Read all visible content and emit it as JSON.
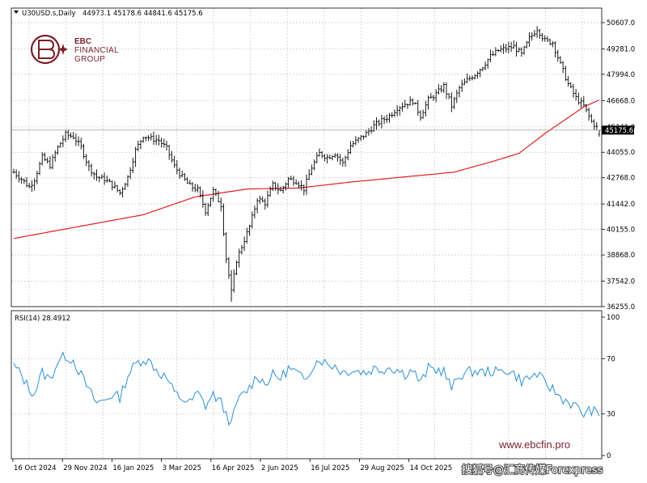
{
  "header": {
    "symbol": "U30USD.s,Daily",
    "ohlc": "44973.1 45178.6 44841.6 45175.6"
  },
  "brand": {
    "line1": "EBC",
    "line2": "FINANCIAL",
    "line3": "GROUP",
    "website": "www.ebcfin.pro",
    "source_caption": "搜狐号@汇商传媒Forexpress"
  },
  "colors": {
    "candle": "#1a1a1a",
    "ma": "#e02020",
    "rsi": "#2a8fd6",
    "grid": "#c8c8c8",
    "brand": "#7a1f2a"
  },
  "chart_data": [
    {
      "type": "candlestick",
      "title": "U30USD.s,Daily",
      "ohlc_last": {
        "open": 44973.1,
        "high": 45178.6,
        "low": 44841.6,
        "close": 45175.6
      },
      "current_price_label": "45175.6",
      "y_ticks": [
        "50607.0",
        "49281.0",
        "47994.0",
        "46668.0",
        "45341.0",
        "44055.0",
        "42768.0",
        "41442.0",
        "40155.0",
        "38868.0",
        "37542.0",
        "36255.0"
      ],
      "ylim": [
        36255,
        50607
      ],
      "x_ticks": [
        "16 Oct 2024",
        "29 Nov 2024",
        "16 Jan 2025",
        "3 Mar 2025",
        "16 Apr 2025",
        "2 Jun 2025",
        "16 Jul 2025",
        "29 Aug 2025",
        "14 Oct 2025"
      ],
      "close_path": [
        [
          0,
          43050
        ],
        [
          3,
          42700
        ],
        [
          6,
          42300
        ],
        [
          8,
          42700
        ],
        [
          11,
          43800
        ],
        [
          14,
          43400
        ],
        [
          17,
          44300
        ],
        [
          20,
          44950
        ],
        [
          23,
          44850
        ],
        [
          26,
          44300
        ],
        [
          29,
          43300
        ],
        [
          32,
          42800
        ],
        [
          35,
          42700
        ],
        [
          38,
          42400
        ],
        [
          41,
          42000
        ],
        [
          44,
          42800
        ],
        [
          47,
          44150
        ],
        [
          50,
          44900
        ],
        [
          53,
          44750
        ],
        [
          56,
          44650
        ],
        [
          59,
          44250
        ],
        [
          62,
          43350
        ],
        [
          65,
          42800
        ],
        [
          68,
          42350
        ],
        [
          71,
          42150
        ],
        [
          74,
          41100
        ],
        [
          77,
          42100
        ],
        [
          80,
          41400
        ],
        [
          82,
          38700
        ],
        [
          84,
          37000
        ],
        [
          86,
          38600
        ],
        [
          88,
          39300
        ],
        [
          91,
          40300
        ],
        [
          94,
          41700
        ],
        [
          97,
          41500
        ],
        [
          100,
          42400
        ],
        [
          103,
          42100
        ],
        [
          106,
          42700
        ],
        [
          109,
          42600
        ],
        [
          112,
          42200
        ],
        [
          115,
          43300
        ],
        [
          118,
          44000
        ],
        [
          121,
          43800
        ],
        [
          124,
          44000
        ],
        [
          127,
          43500
        ],
        [
          130,
          44400
        ],
        [
          133,
          44700
        ],
        [
          136,
          45000
        ],
        [
          139,
          45400
        ],
        [
          142,
          45650
        ],
        [
          145,
          45900
        ],
        [
          148,
          46300
        ],
        [
          151,
          46500
        ],
        [
          154,
          46650
        ],
        [
          157,
          45900
        ],
        [
          160,
          46700
        ],
        [
          163,
          47000
        ],
        [
          166,
          47400
        ],
        [
          169,
          46400
        ],
        [
          172,
          47300
        ],
        [
          175,
          47700
        ],
        [
          178,
          48000
        ],
        [
          181,
          48400
        ],
        [
          184,
          48900
        ],
        [
          187,
          49200
        ],
        [
          190,
          49300
        ],
        [
          193,
          49400
        ],
        [
          196,
          49000
        ],
        [
          199,
          49800
        ],
        [
          202,
          50300
        ],
        [
          205,
          49700
        ],
        [
          208,
          49600
        ],
        [
          211,
          48500
        ],
        [
          214,
          47500
        ],
        [
          217,
          46800
        ],
        [
          220,
          46400
        ],
        [
          223,
          45600
        ],
        [
          226,
          45175.6
        ]
      ],
      "ma_path": [
        [
          0,
          39700
        ],
        [
          25,
          40300
        ],
        [
          50,
          40900
        ],
        [
          70,
          41800
        ],
        [
          90,
          42200
        ],
        [
          110,
          42250
        ],
        [
          130,
          42550
        ],
        [
          150,
          42800
        ],
        [
          170,
          43050
        ],
        [
          185,
          43600
        ],
        [
          195,
          44000
        ],
        [
          205,
          45000
        ],
        [
          215,
          45900
        ],
        [
          220,
          46350
        ],
        [
          226,
          46700
        ]
      ]
    },
    {
      "type": "line",
      "title": "RSI(14) 28.4912",
      "y_ticks": [
        "100",
        "70",
        "30",
        "0"
      ],
      "ylim": [
        0,
        100
      ],
      "values": [
        [
          0,
          65
        ],
        [
          3,
          58
        ],
        [
          6,
          48
        ],
        [
          8,
          45
        ],
        [
          11,
          60
        ],
        [
          14,
          55
        ],
        [
          17,
          68
        ],
        [
          20,
          72
        ],
        [
          23,
          69
        ],
        [
          26,
          58
        ],
        [
          29,
          47
        ],
        [
          32,
          38
        ],
        [
          35,
          40
        ],
        [
          38,
          44
        ],
        [
          41,
          42
        ],
        [
          44,
          58
        ],
        [
          47,
          66
        ],
        [
          50,
          70
        ],
        [
          53,
          67
        ],
        [
          56,
          60
        ],
        [
          59,
          56
        ],
        [
          62,
          45
        ],
        [
          65,
          41
        ],
        [
          68,
          38
        ],
        [
          71,
          45
        ],
        [
          74,
          36
        ],
        [
          77,
          44
        ],
        [
          80,
          38
        ],
        [
          82,
          30
        ],
        [
          84,
          22
        ],
        [
          86,
          38
        ],
        [
          88,
          43
        ],
        [
          91,
          49
        ],
        [
          94,
          58
        ],
        [
          97,
          52
        ],
        [
          100,
          58
        ],
        [
          103,
          56
        ],
        [
          106,
          63
        ],
        [
          109,
          60
        ],
        [
          112,
          54
        ],
        [
          115,
          64
        ],
        [
          118,
          70
        ],
        [
          121,
          66
        ],
        [
          124,
          65
        ],
        [
          127,
          60
        ],
        [
          130,
          62
        ],
        [
          133,
          61
        ],
        [
          136,
          60
        ],
        [
          139,
          63
        ],
        [
          142,
          62
        ],
        [
          145,
          64
        ],
        [
          148,
          62
        ],
        [
          151,
          59
        ],
        [
          154,
          62
        ],
        [
          157,
          52
        ],
        [
          160,
          63
        ],
        [
          163,
          62
        ],
        [
          166,
          61
        ],
        [
          169,
          48
        ],
        [
          172,
          58
        ],
        [
          175,
          60
        ],
        [
          178,
          61
        ],
        [
          181,
          60
        ],
        [
          184,
          61
        ],
        [
          187,
          60
        ],
        [
          190,
          62
        ],
        [
          193,
          59
        ],
        [
          196,
          54
        ],
        [
          199,
          56
        ],
        [
          202,
          59
        ],
        [
          205,
          52
        ],
        [
          208,
          48
        ],
        [
          211,
          42
        ],
        [
          214,
          39
        ],
        [
          217,
          35
        ],
        [
          220,
          30
        ],
        [
          223,
          33
        ],
        [
          226,
          28.4912
        ]
      ]
    }
  ]
}
